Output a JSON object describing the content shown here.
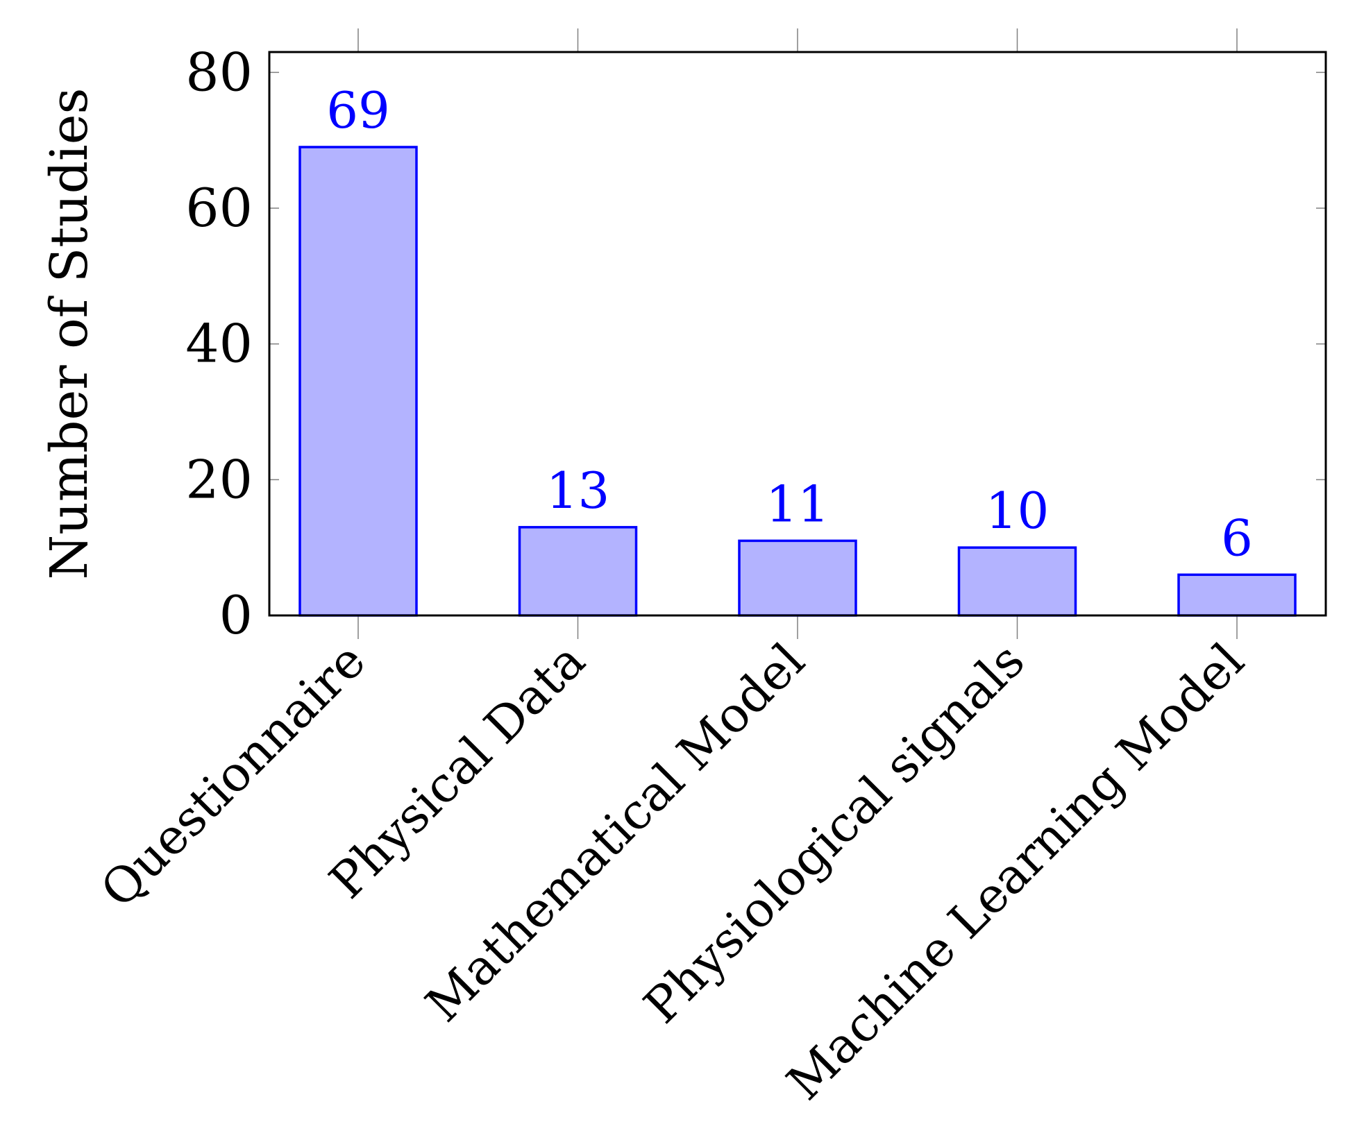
{
  "chart_data": {
    "type": "bar",
    "categories": [
      "Questionnaire",
      "Physical Data",
      "Mathematical Model",
      "Physiological signals",
      "Machine Learning Model"
    ],
    "values": [
      69,
      13,
      11,
      10,
      6
    ],
    "title": "",
    "xlabel": "",
    "ylabel": "Number of Studies",
    "ylim": [
      0,
      83
    ],
    "yticks": [
      0,
      20,
      40,
      60,
      80
    ],
    "grid": false,
    "data_labels": true,
    "colors": {
      "bar_fill": "#b3b3ff",
      "bar_stroke": "#0000ff",
      "data_label": "#0000ff",
      "axis": "#000000",
      "tick": "#808080"
    }
  }
}
